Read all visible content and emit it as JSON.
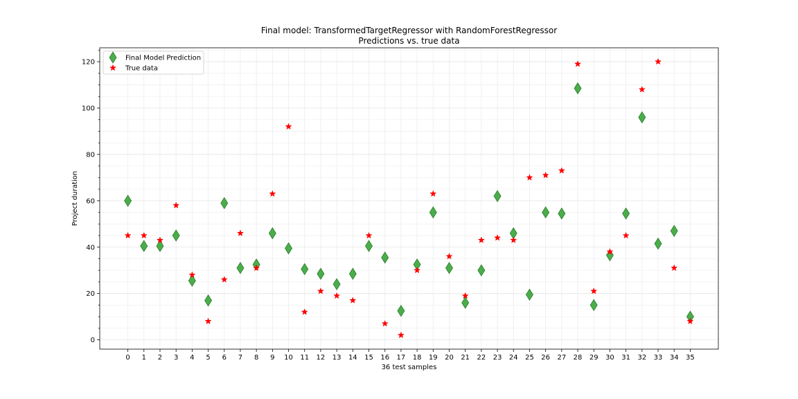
{
  "chart_data": {
    "type": "scatter",
    "title": "Final model: TransformedTargetRegressor with RandomForestRegressor",
    "subtitle": "Predictions vs. true data",
    "xlabel": "36 test samples",
    "ylabel": "Project duration",
    "x": [
      0,
      1,
      2,
      3,
      4,
      5,
      6,
      7,
      8,
      9,
      10,
      11,
      12,
      13,
      14,
      15,
      16,
      17,
      18,
      19,
      20,
      21,
      22,
      23,
      24,
      25,
      26,
      27,
      28,
      29,
      30,
      31,
      32,
      33,
      34,
      35
    ],
    "xlim": [
      -1.75,
      36.75
    ],
    "ylim": [
      -4,
      126
    ],
    "yticks": [
      0,
      20,
      40,
      60,
      80,
      100,
      120
    ],
    "grid": true,
    "legend": "top-left",
    "series": [
      {
        "name": "Final Model Prediction",
        "marker": "diamond",
        "color": "#2ca02c",
        "values": [
          60,
          40.5,
          40.5,
          45,
          25.5,
          17,
          59,
          31,
          32.5,
          46,
          39.5,
          30.5,
          28.5,
          24,
          28.5,
          40.5,
          35.5,
          12.5,
          32.5,
          55,
          31,
          16,
          30,
          62,
          46,
          19.5,
          55,
          54.5,
          108.5,
          15,
          36.5,
          54.5,
          96,
          41.5,
          47,
          10
        ]
      },
      {
        "name": "True data",
        "marker": "star",
        "color": "#ff0000",
        "values": [
          45,
          45,
          43,
          58,
          28,
          8,
          26,
          46,
          31,
          63,
          92,
          12,
          21,
          19,
          17,
          45,
          7,
          2,
          30,
          63,
          36,
          19,
          43,
          44,
          43,
          70,
          71,
          73,
          119,
          21,
          38,
          45,
          108,
          120,
          31,
          8
        ]
      }
    ]
  }
}
